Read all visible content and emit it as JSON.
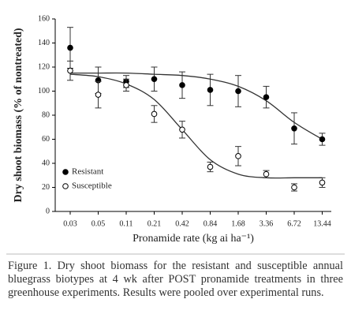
{
  "chart_data": {
    "type": "scatter",
    "y_label": "Dry shoot biomass (% of nontreated)",
    "x_label": "Pronamide rate (kg ai ha⁻¹)",
    "categories": [
      "0.03",
      "0.05",
      "0.11",
      "0.21",
      "0.42",
      "0.84",
      "1.68",
      "3.36",
      "6.72",
      "13.44"
    ],
    "ylim": [
      0,
      160
    ],
    "yticks": [
      0,
      20,
      40,
      60,
      80,
      100,
      120,
      140,
      160
    ],
    "legend": "lower-left",
    "series": [
      {
        "name": "Resistant",
        "color": "#000000",
        "marker": "filled",
        "values": [
          136,
          109,
          108,
          110,
          105,
          101,
          100,
          95,
          69,
          60
        ],
        "errors": [
          17,
          11,
          5,
          10,
          11,
          13,
          13,
          9,
          13,
          5
        ],
        "fit_values": [
          115,
          115,
          115,
          114,
          113,
          110,
          104,
          92,
          74,
          60
        ]
      },
      {
        "name": "Susceptible",
        "color": "#000000",
        "marker": "open",
        "values": [
          117,
          97,
          105,
          81,
          68,
          37,
          46,
          31,
          20,
          24
        ],
        "errors": [
          8,
          11,
          5,
          7,
          7,
          4,
          8,
          3,
          3,
          4
        ],
        "fit_values": [
          114,
          112,
          106,
          93,
          68,
          43,
          31,
          28,
          28,
          28
        ]
      }
    ]
  },
  "caption": "Figure 1. Dry shoot biomass for the resistant and susceptible annual bluegrass biotypes at 4 wk after POST pronamide treatments in three greenhouse experiments. Results were pooled over experimental runs."
}
